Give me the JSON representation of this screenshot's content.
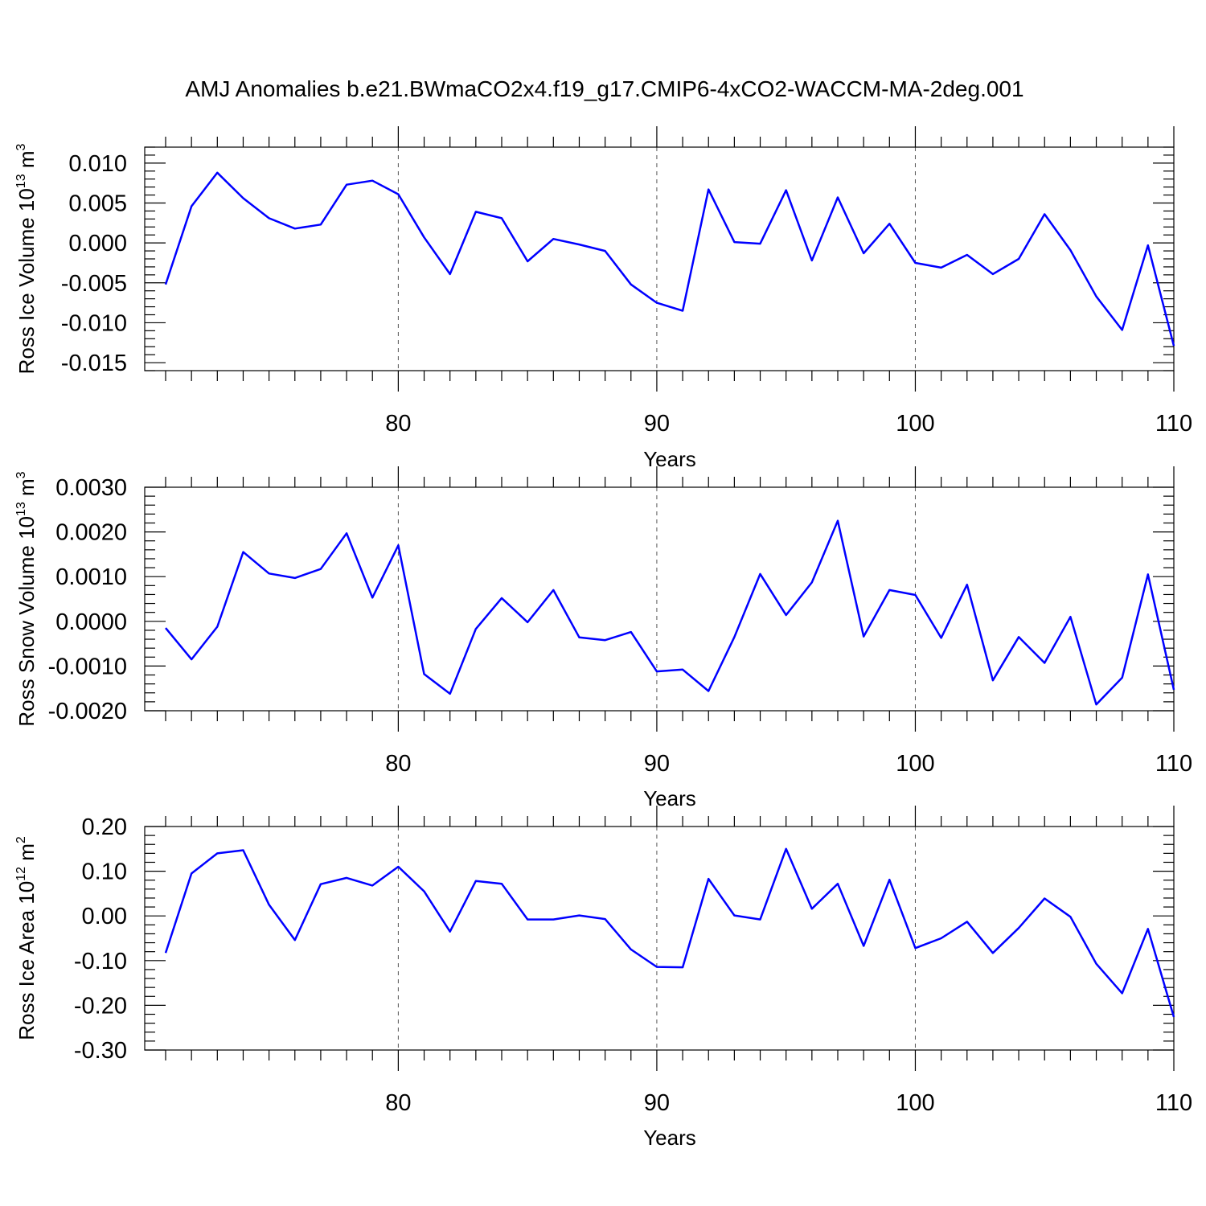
{
  "title": "AMJ Anomalies b.e21.BWmaCO2x4.f19_g17.CMIP6-4xCO2-WACCM-MA-2deg.001",
  "chart_data": [
    {
      "type": "line",
      "ylabel": "Ross Ice Volume 10",
      "ylabel_exp": "13",
      "ylabel_unit": "m",
      "ylabel_unit_exp": "3",
      "xlabel": "Years",
      "xlim": [
        71,
        110
      ],
      "ylim": [
        -0.016,
        0.012
      ],
      "yticks": [
        -0.015,
        -0.01,
        -0.005,
        0.0,
        0.005,
        0.01
      ],
      "ytick_labels": [
        "-0.015",
        "-0.010",
        "-0.005",
        "0.000",
        "0.005",
        "0.010"
      ],
      "xticks": [
        80,
        90,
        100,
        110
      ],
      "xtick_labels": [
        "80",
        "90",
        "100",
        "110"
      ],
      "x": [
        71,
        72,
        73,
        74,
        75,
        76,
        77,
        78,
        79,
        80,
        81,
        82,
        83,
        84,
        85,
        86,
        87,
        88,
        89,
        90,
        91,
        92,
        93,
        94,
        95,
        96,
        97,
        98,
        99,
        100,
        101,
        102,
        103,
        104,
        105,
        106,
        107,
        108,
        109,
        110
      ],
      "values": [
        -0.0052,
        0.0046,
        0.0088,
        0.0056,
        0.0031,
        0.0018,
        0.0023,
        0.0073,
        0.0078,
        0.0061,
        0.0007,
        -0.0039,
        0.0039,
        0.0031,
        -0.0023,
        0.0005,
        -0.0002,
        -0.001,
        -0.0052,
        -0.0075,
        -0.0085,
        0.0067,
        0.0001,
        -0.0001,
        0.0066,
        -0.0022,
        0.0057,
        -0.0013,
        0.0024,
        -0.0025,
        -0.0031,
        -0.0015,
        -0.0039,
        -0.002,
        0.0036,
        -0.0009,
        -0.0067,
        -0.0109,
        -0.0003,
        -0.0129
      ],
      "grid": "dashed vertical at major x ticks"
    },
    {
      "type": "line",
      "ylabel": "Ross Snow Volume 10",
      "ylabel_exp": "13",
      "ylabel_unit": "m",
      "ylabel_unit_exp": "3",
      "xlabel": "Years",
      "xlim": [
        71,
        110
      ],
      "ylim": [
        -0.002,
        0.003
      ],
      "yticks": [
        -0.002,
        -0.001,
        0.0,
        0.001,
        0.002,
        0.003
      ],
      "ytick_labels": [
        "-0.0020",
        "-0.0010",
        "0.0000",
        "0.0010",
        "0.0020",
        "0.0030"
      ],
      "xticks": [
        80,
        90,
        100,
        110
      ],
      "xtick_labels": [
        "80",
        "90",
        "100",
        "110"
      ],
      "x": [
        71,
        72,
        73,
        74,
        75,
        76,
        77,
        78,
        79,
        80,
        81,
        82,
        83,
        84,
        85,
        86,
        87,
        88,
        89,
        90,
        91,
        92,
        93,
        94,
        95,
        96,
        97,
        98,
        99,
        100,
        101,
        102,
        103,
        104,
        105,
        106,
        107,
        108,
        109,
        110
      ],
      "values": [
        -0.00015,
        -0.00085,
        -0.00012,
        0.00155,
        0.00107,
        0.00097,
        0.00117,
        0.00197,
        0.00053,
        0.0017,
        -0.00118,
        -0.00162,
        -0.00017,
        0.00052,
        -2e-05,
        0.0007,
        -0.00036,
        -0.00042,
        -0.00024,
        -0.00112,
        -0.00108,
        -0.00156,
        -0.00035,
        0.00106,
        0.00014,
        0.00087,
        0.00225,
        -0.00034,
        0.0007,
        0.00059,
        -0.00037,
        0.00082,
        -0.00132,
        -0.00035,
        -0.00093,
        0.0001,
        -0.00186,
        -0.00126,
        0.00105,
        -0.00153
      ],
      "grid": "dashed vertical at major x ticks"
    },
    {
      "type": "line",
      "ylabel": "Ross Ice Area 10",
      "ylabel_exp": "12",
      "ylabel_unit": "m",
      "ylabel_unit_exp": "2",
      "xlabel": "Years",
      "xlim": [
        71,
        110
      ],
      "ylim": [
        -0.3,
        0.2
      ],
      "yticks": [
        -0.3,
        -0.2,
        -0.1,
        0.0,
        0.1,
        0.2
      ],
      "ytick_labels": [
        "-0.30",
        "-0.20",
        "-0.10",
        "0.00",
        "0.10",
        "0.20"
      ],
      "xticks": [
        80,
        90,
        100,
        110
      ],
      "xtick_labels": [
        "80",
        "90",
        "100",
        "110"
      ],
      "x": [
        71,
        72,
        73,
        74,
        75,
        76,
        77,
        78,
        79,
        80,
        81,
        82,
        83,
        84,
        85,
        86,
        87,
        88,
        89,
        90,
        91,
        92,
        93,
        94,
        95,
        96,
        97,
        98,
        99,
        100,
        101,
        102,
        103,
        104,
        105,
        106,
        107,
        108,
        109,
        110
      ],
      "values": [
        -0.083,
        0.095,
        0.14,
        0.147,
        0.025,
        -0.054,
        0.071,
        0.085,
        0.068,
        0.11,
        0.055,
        -0.035,
        0.078,
        0.072,
        -0.008,
        -0.008,
        0.001,
        -0.007,
        -0.075,
        -0.114,
        -0.115,
        0.083,
        0.001,
        -0.008,
        0.15,
        0.016,
        0.072,
        -0.067,
        0.081,
        -0.072,
        -0.05,
        -0.013,
        -0.083,
        -0.027,
        0.039,
        -0.002,
        -0.107,
        -0.173,
        -0.029,
        -0.226
      ],
      "grid": "dashed vertical at major x ticks"
    }
  ],
  "colors": {
    "series": "#0000ff",
    "frame": "#000000",
    "grid": "#555555"
  }
}
